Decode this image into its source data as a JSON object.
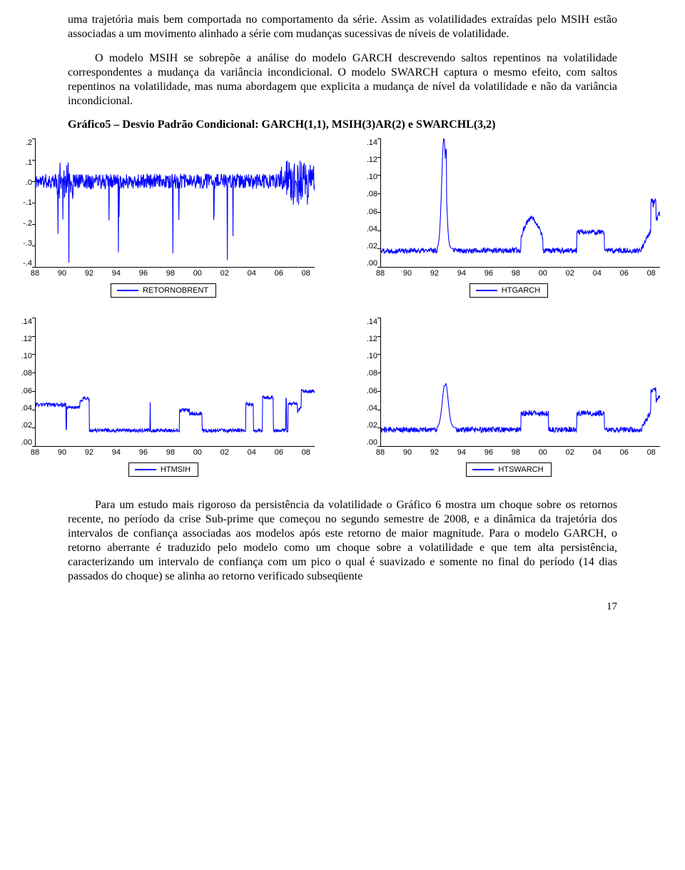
{
  "text": {
    "para1": "uma trajetória mais bem comportada no comportamento da série. Assim as volatilidades extraídas pelo MSIH estão associadas a um movimento alinhado a série com mudanças sucessivas de níveis de volatilidade.",
    "para2": "O modelo MSIH se sobrepõe a análise do modelo GARCH descrevendo saltos repentinos na volatilidade correspondentes a mudança da variância incondicional. O modelo SWARCH captura o mesmo efeito, com saltos repentinos na volatilidade, mas numa abordagem que explicita a mudança de nível da volatilidade e não da variância incondicional.",
    "chart_title": "Gráfico5 – Desvio Padrão Condicional: GARCH(1,1), MSIH(3)AR(2) e SWARCHL(3,2)",
    "para3": "Para um estudo mais rigoroso da persistência da volatilidade o Gráfico 6 mostra um choque sobre os retornos recente, no período da crise Sub-prime que começou no segundo semestre de 2008, e a dinâmica da trajetória dos intervalos de confiança associadas aos modelos após este retorno de maior magnitude. Para o modelo GARCH, o retorno aberrante é traduzido pelo modelo como um choque sobre a volatilidade e que tem alta persistência, caracterizando um intervalo de confiança com um pico o qual é suavizado e somente no final do período (14 dias passados do choque) se alinha ao retorno verificado subseqüente",
    "page_number": "17"
  },
  "style": {
    "line_color": "#0000ff",
    "axis_color": "#000000",
    "background_color": "#ffffff",
    "body_font_family": "Times New Roman",
    "axis_font_family": "Arial",
    "body_fontsize_pt": 12,
    "axis_fontsize_pt": 8,
    "line_width": 1.1
  },
  "charts": [
    {
      "id": "retornobrent",
      "type": "line",
      "legend": "RETORNOBRENT",
      "ylim": [
        -0.4,
        0.2
      ],
      "yticks": [
        ".2",
        ".1",
        ".0",
        "-.1",
        "-.2",
        "-.3",
        "-.4"
      ],
      "xticks": [
        "88",
        "90",
        "92",
        "94",
        "96",
        "98",
        "00",
        "02",
        "04",
        "06",
        "08"
      ],
      "series_color": "#0000ff",
      "seed": 11
    },
    {
      "id": "htgarch",
      "type": "line",
      "legend": "HTGARCH",
      "ylim": [
        0.0,
        0.14
      ],
      "yticks": [
        ".14",
        ".12",
        ".10",
        ".08",
        ".06",
        ".04",
        ".02",
        ".00"
      ],
      "xticks": [
        "88",
        "90",
        "92",
        "94",
        "96",
        "98",
        "00",
        "02",
        "04",
        "06",
        "08"
      ],
      "series_color": "#0000ff",
      "seed": 22
    },
    {
      "id": "htmsih",
      "type": "line",
      "legend": "HTMSIH",
      "ylim": [
        0.0,
        0.14
      ],
      "yticks": [
        ".14",
        ".12",
        ".10",
        ".08",
        ".06",
        ".04",
        ".02",
        ".00"
      ],
      "xticks": [
        "88",
        "90",
        "92",
        "94",
        "96",
        "98",
        "00",
        "02",
        "04",
        "06",
        "08"
      ],
      "series_color": "#0000ff",
      "seed": 33
    },
    {
      "id": "htswarch",
      "type": "line",
      "legend": "HTSWARCH",
      "ylim": [
        0.0,
        0.14
      ],
      "yticks": [
        ".14",
        ".12",
        ".10",
        ".08",
        ".06",
        ".04",
        ".02",
        ".00"
      ],
      "xticks": [
        "88",
        "90",
        "92",
        "94",
        "96",
        "98",
        "00",
        "02",
        "04",
        "06",
        "08"
      ],
      "series_color": "#0000ff",
      "seed": 44
    }
  ]
}
